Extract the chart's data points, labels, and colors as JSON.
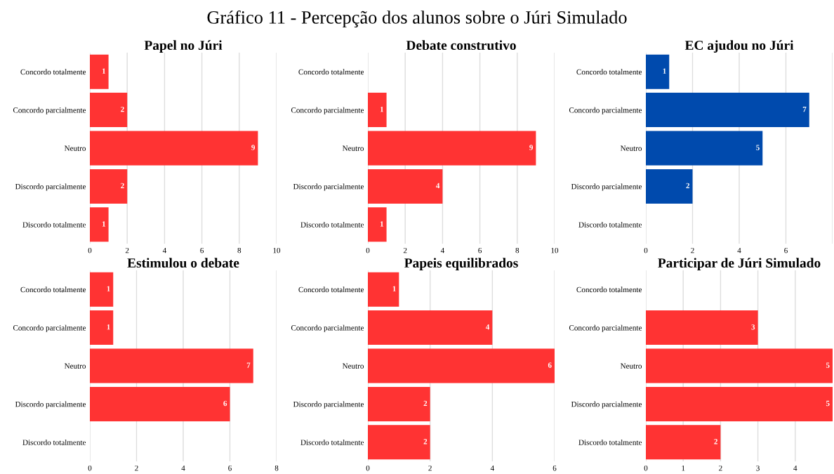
{
  "chart_data": [
    {
      "type": "bar",
      "orientation": "horizontal",
      "title": "Papel no Júri",
      "categories": [
        "Concordo totalmente",
        "Concordo parcialmente",
        "Neutro",
        "Discordo parcialmente",
        "Discordo totalmente"
      ],
      "values": [
        1,
        2,
        9,
        2,
        1
      ],
      "color": "#ff3333",
      "xlim": [
        0,
        10
      ],
      "xticks": [
        0,
        2,
        4,
        6,
        8,
        10
      ],
      "grid": "x",
      "data_labels": true
    },
    {
      "type": "bar",
      "orientation": "horizontal",
      "title": "Debate construtivo",
      "subtitle": "Gráfico 11 - Percepção dos alunos sobre o Júri Simulado",
      "categories": [
        "Concordo totalmente",
        "Concordo parcialmente",
        "Neutro",
        "Discordo parcialmente",
        "Discordo totalmente"
      ],
      "values": [
        null,
        1,
        9,
        4,
        1
      ],
      "color": "#ff3333",
      "xlim": [
        0,
        10
      ],
      "xticks": [
        0,
        2,
        4,
        6,
        8,
        10
      ],
      "grid": "x",
      "data_labels": true
    },
    {
      "type": "bar",
      "orientation": "horizontal",
      "title": "EC ajudou no Júri",
      "categories": [
        "Concordo totalmente",
        "Concordo parcialmente",
        "Neutro",
        "Discordo parcialmente",
        "Discordo totalmente"
      ],
      "values": [
        1,
        7,
        5,
        2,
        null
      ],
      "color": "#004aad",
      "xlim": [
        0,
        8
      ],
      "xticks": [
        0,
        2,
        4,
        6,
        {
          "value": 8,
          "label": null
        }
      ],
      "grid": "x",
      "data_labels": true
    },
    {
      "type": "bar",
      "orientation": "horizontal",
      "title": "Estimulou o debate",
      "categories": [
        "Concordo totalmente",
        "Concordo parcialmente",
        "Neutro",
        "Discordo parcialmente",
        "Discordo totalmente"
      ],
      "values": [
        1,
        1,
        7,
        6,
        null
      ],
      "color": "#ff3333",
      "xlim": [
        0,
        8
      ],
      "xticks": [
        0,
        2,
        4,
        6,
        8
      ],
      "grid": "x",
      "data_labels": true
    },
    {
      "type": "bar",
      "orientation": "horizontal",
      "title": "Papeis equilibrados",
      "categories": [
        "Concordo totalmente",
        "Concordo parcialmente",
        "Neutro",
        "Discordo parcialmente",
        "Discordo totalmente"
      ],
      "values": [
        1,
        4,
        6,
        2,
        2
      ],
      "color": "#ff3333",
      "xlim": [
        0,
        6
      ],
      "xticks": [
        0,
        2,
        4,
        6
      ],
      "grid": "x",
      "data_labels": true
    },
    {
      "type": "bar",
      "orientation": "horizontal",
      "title": "Participar de Júri Simulado",
      "categories": [
        "Concordo totalmente",
        "Concordo parcialmente",
        "Neutro",
        "Discordo parcialmente",
        "Discordo totalmente"
      ],
      "values": [
        null,
        3,
        5,
        5,
        2
      ],
      "color": "#ff3333",
      "xlim": [
        0,
        5
      ],
      "xticks": [
        0,
        1,
        2,
        3,
        4
      ],
      "grid": "x",
      "data_labels": true
    }
  ]
}
